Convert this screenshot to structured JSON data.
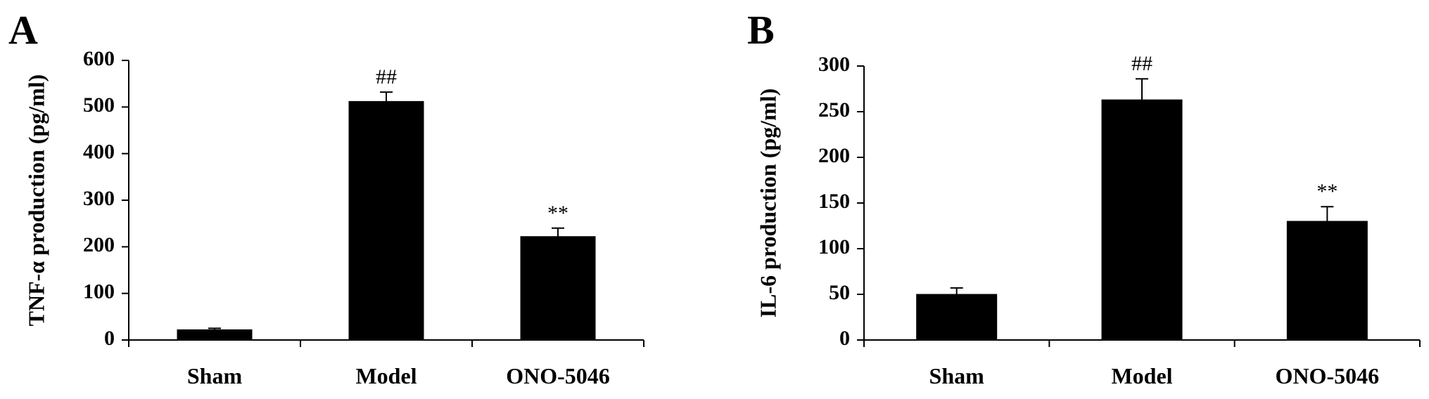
{
  "chart_data": [
    {
      "type": "bar",
      "panel_label": "A",
      "title": "",
      "xlabel": "",
      "ylabel": "TNF-α production (pg/ml)",
      "ylim": [
        0,
        600
      ],
      "yticks": [
        0,
        100,
        200,
        300,
        400,
        500,
        600
      ],
      "categories": [
        "Sham",
        "Model",
        "ONO-5046"
      ],
      "values": [
        22,
        512,
        222
      ],
      "errors": [
        3,
        20,
        18
      ],
      "annotations": [
        "",
        "##",
        "**"
      ],
      "bar_color": "#000000",
      "grid": false,
      "legend": "none"
    },
    {
      "type": "bar",
      "panel_label": "B",
      "title": "",
      "xlabel": "",
      "ylabel": "IL-6 production (pg/ml)",
      "ylim": [
        0,
        300
      ],
      "yticks": [
        0,
        50,
        100,
        150,
        200,
        250,
        300
      ],
      "categories": [
        "Sham",
        "Model",
        "ONO-5046"
      ],
      "values": [
        50,
        263,
        130
      ],
      "errors": [
        7,
        23,
        16
      ],
      "annotations": [
        "",
        "##",
        "**"
      ],
      "bar_color": "#000000",
      "grid": false,
      "legend": "none"
    }
  ]
}
